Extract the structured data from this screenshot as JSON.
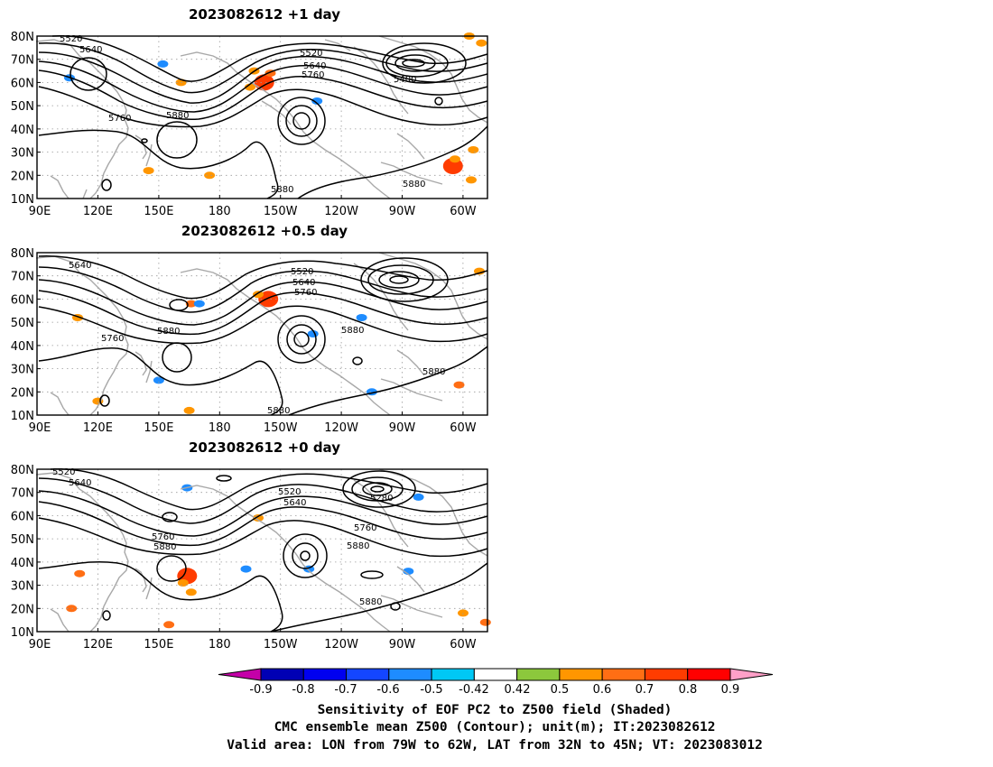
{
  "panels": [
    {
      "title": "2023082612 +1 day",
      "contour_labels": [
        "5520",
        "5640",
        "5520",
        "5640",
        "5760",
        "5400",
        "5760",
        "5880",
        "5880",
        "5880"
      ],
      "shading": [
        {
          "lon": 202,
          "lat": 60,
          "value": 0.7
        },
        {
          "lon": 205,
          "lat": 64,
          "value": 0.6
        },
        {
          "lon": 197,
          "lat": 65,
          "value": 0.5
        },
        {
          "lon": 195,
          "lat": 58,
          "value": 0.5
        },
        {
          "lon": 295,
          "lat": 24,
          "value": 0.7
        },
        {
          "lon": 296,
          "lat": 27,
          "value": 0.5
        },
        {
          "lon": 304,
          "lat": 18,
          "value": 0.5
        },
        {
          "lon": 305,
          "lat": 31,
          "value": 0.5
        },
        {
          "lon": 309,
          "lat": 77,
          "value": 0.5
        },
        {
          "lon": 152,
          "lat": 68,
          "value": -0.6
        },
        {
          "lon": 145,
          "lat": 22,
          "value": 0.5
        },
        {
          "lon": 228,
          "lat": 52,
          "value": -0.6
        },
        {
          "lon": 161,
          "lat": 60,
          "value": 0.5
        },
        {
          "lon": 175,
          "lat": 20,
          "value": 0.5
        },
        {
          "lon": 106,
          "lat": 62,
          "value": -0.6
        },
        {
          "lon": 303,
          "lat": 80,
          "value": 0.5
        }
      ]
    },
    {
      "title": "2023082612 +0.5 day",
      "contour_labels": [
        "5640",
        "5520",
        "5640",
        "5760",
        "5760",
        "5880",
        "5880",
        "5880",
        "5880"
      ],
      "shading": [
        {
          "lon": 204,
          "lat": 60,
          "value": 0.7
        },
        {
          "lon": 199,
          "lat": 62,
          "value": 0.5
        },
        {
          "lon": 166,
          "lat": 58,
          "value": 0.6
        },
        {
          "lon": 170,
          "lat": 58,
          "value": -0.6
        },
        {
          "lon": 250,
          "lat": 52,
          "value": -0.6
        },
        {
          "lon": 226,
          "lat": 45,
          "value": -0.6
        },
        {
          "lon": 298,
          "lat": 23,
          "value": 0.6
        },
        {
          "lon": 308,
          "lat": 72,
          "value": 0.5
        },
        {
          "lon": 120,
          "lat": 16,
          "value": 0.5
        },
        {
          "lon": 165,
          "lat": 12,
          "value": 0.5
        },
        {
          "lon": 150,
          "lat": 25,
          "value": -0.6
        },
        {
          "lon": 255,
          "lat": 20,
          "value": -0.6
        },
        {
          "lon": 110,
          "lat": 52,
          "value": 0.5
        }
      ]
    },
    {
      "title": "2023082612 +0 day",
      "contour_labels": [
        "5520",
        "5640",
        "5520",
        "5640",
        "5280",
        "5760",
        "5760",
        "5880",
        "5880",
        "5880"
      ],
      "shading": [
        {
          "lon": 164,
          "lat": 34,
          "value": 0.7
        },
        {
          "lon": 162,
          "lat": 31,
          "value": 0.5
        },
        {
          "lon": 166,
          "lat": 27,
          "value": 0.5
        },
        {
          "lon": 111,
          "lat": 35,
          "value": 0.6
        },
        {
          "lon": 164,
          "lat": 72,
          "value": -0.6
        },
        {
          "lon": 193,
          "lat": 37,
          "value": -0.6
        },
        {
          "lon": 224,
          "lat": 37,
          "value": -0.6
        },
        {
          "lon": 278,
          "lat": 68,
          "value": -0.6
        },
        {
          "lon": 273,
          "lat": 36,
          "value": -0.6
        },
        {
          "lon": 300,
          "lat": 18,
          "value": 0.5
        },
        {
          "lon": 311,
          "lat": 14,
          "value": 0.6
        },
        {
          "lon": 155,
          "lat": 13,
          "value": 0.6
        },
        {
          "lon": 199,
          "lat": 59,
          "value": 0.5
        },
        {
          "lon": 107,
          "lat": 20,
          "value": 0.6
        }
      ]
    }
  ],
  "axes": {
    "lat_labels": [
      "80N",
      "70N",
      "60N",
      "50N",
      "40N",
      "30N",
      "20N",
      "10N"
    ],
    "lon_labels": [
      "90E",
      "120E",
      "150E",
      "180",
      "150W",
      "120W",
      "90W",
      "60W"
    ],
    "lat_range": [
      10,
      80
    ],
    "lon_range": [
      90,
      312
    ]
  },
  "colorbar": {
    "tick_labels": [
      "-0.9",
      "-0.8",
      "-0.7",
      "-0.6",
      "-0.5",
      "-0.42",
      "0.42",
      "0.5",
      "0.6",
      "0.7",
      "0.8",
      "0.9"
    ],
    "levels": [
      -0.9,
      -0.8,
      -0.7,
      -0.6,
      -0.5,
      -0.42,
      0.42,
      0.5,
      0.6,
      0.7,
      0.8,
      0.9
    ],
    "colors": [
      "#c400a8",
      "#0000b4",
      "#0000f0",
      "#1446ff",
      "#1e8cff",
      "#00c8f5",
      "#ffffff",
      "#8cc83c",
      "#ff9600",
      "#ff6e14",
      "#ff3c00",
      "#ff0000",
      "#ffa0c8"
    ]
  },
  "caption": [
    "Sensitivity of EOF PC2 to Z500 field (Shaded)",
    "CMC ensemble mean Z500 (Contour); unit(m); IT:2023082612",
    "Valid area: LON from 79W to 62W, LAT from 32N to 45N; VT: 2023083012"
  ]
}
